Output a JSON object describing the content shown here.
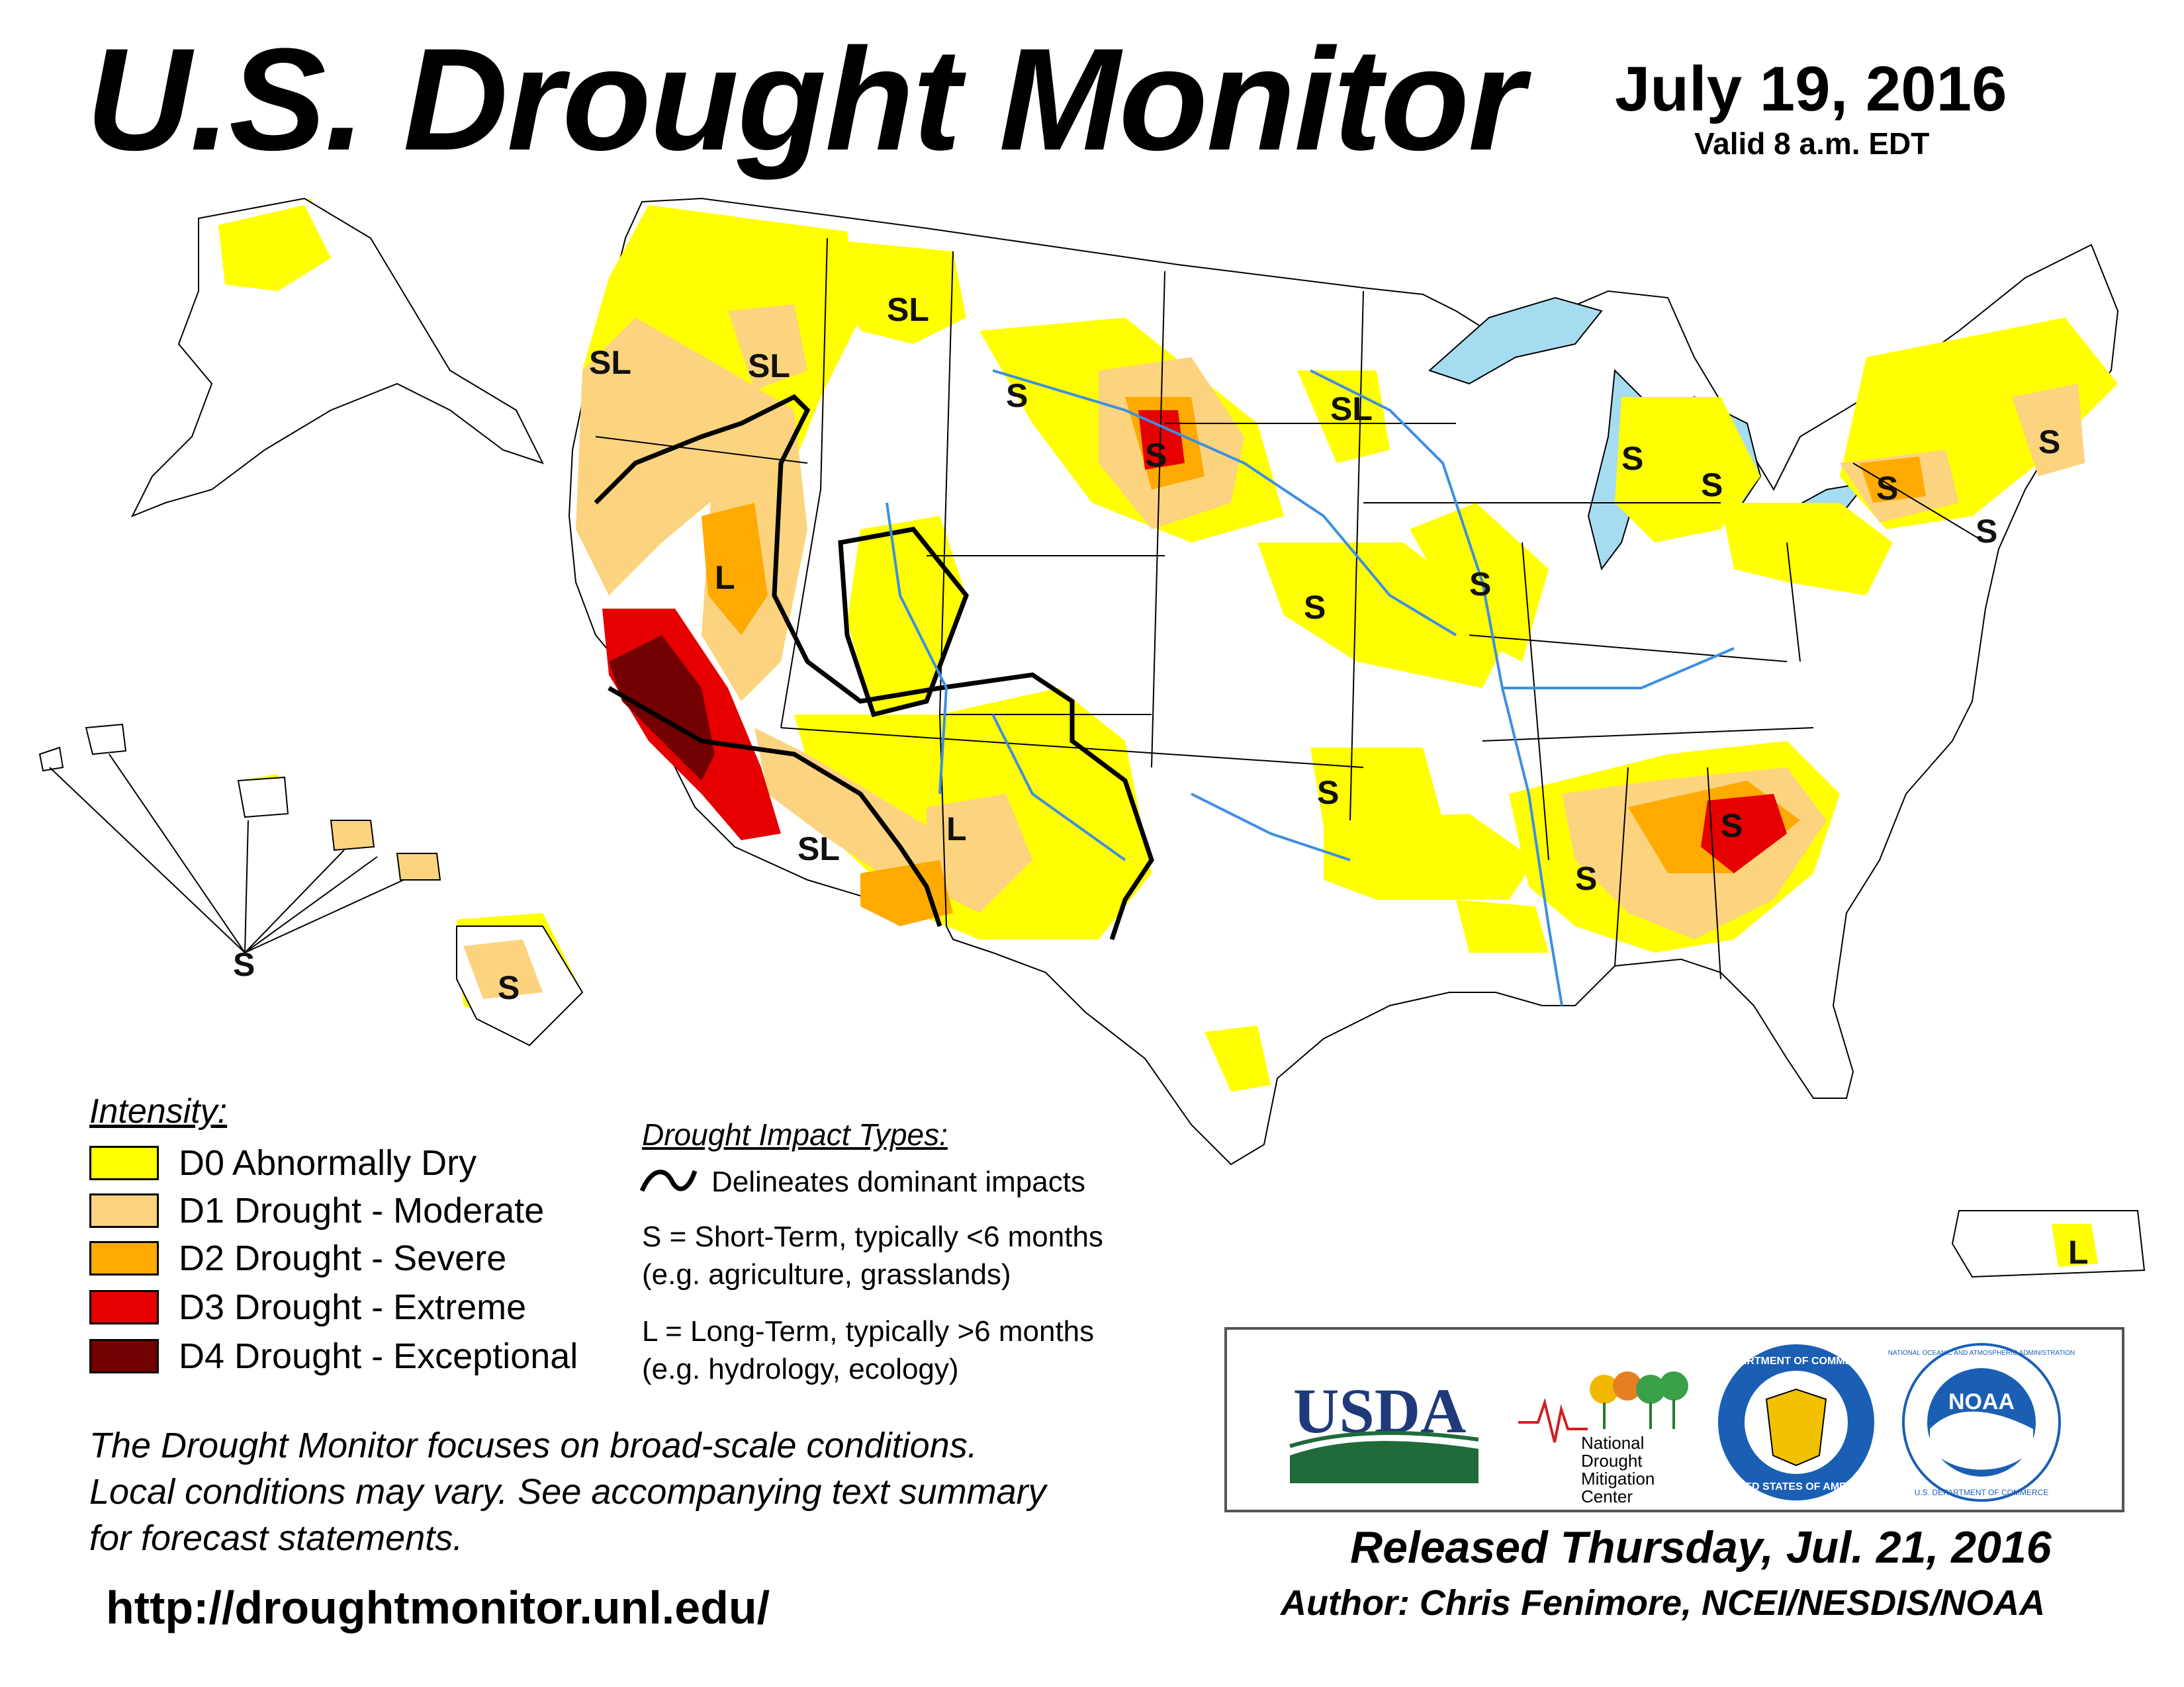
{
  "header": {
    "title": "U.S. Drought Monitor",
    "date": "July 19, 2016",
    "valid": "Valid 8 a.m. EDT"
  },
  "colors": {
    "d0": "#ffff00",
    "d1": "#fcd37f",
    "d2": "#ffaa00",
    "d3": "#e60000",
    "d4": "#730000",
    "water": "#a6dcf0",
    "rivers": "#3d8fe0"
  },
  "legend": {
    "title": "Intensity:",
    "items": [
      {
        "label": "D0 Abnormally Dry",
        "color": "#ffff00"
      },
      {
        "label": "D1 Drought - Moderate",
        "color": "#fcd37f"
      },
      {
        "label": "D2 Drought - Severe",
        "color": "#ffaa00"
      },
      {
        "label": "D3 Drought - Extreme",
        "color": "#e60000"
      },
      {
        "label": "D4 Drought - Exceptional",
        "color": "#730000"
      }
    ]
  },
  "impacts": {
    "title": "Drought Impact Types:",
    "delineates": "Delineates dominant impacts",
    "short_term": "S = Short-Term, typically <6 months",
    "short_term_eg": "(e.g. agriculture, grasslands)",
    "long_term": "L = Long-Term, typically >6 months",
    "long_term_eg": "(e.g. hydrology, ecology)"
  },
  "map_labels": {
    "sl": "SL",
    "s": "S",
    "l": "L"
  },
  "note": {
    "line1": "The Drought Monitor focuses on broad-scale conditions.",
    "line2": "Local conditions may vary. See accompanying text summary",
    "line3": "for forecast statements."
  },
  "url": "http://droughtmonitor.unl.edu/",
  "logos": {
    "usda": "USDA",
    "ndmc_line1": "National",
    "ndmc_line2": "Drought",
    "ndmc_line3": "Mitigation",
    "ndmc_line4": "Center",
    "commerce_top": "DEPARTMENT OF COMMERCE",
    "commerce_bottom": "UNITED STATES OF AMERICA",
    "noaa": "NOAA",
    "noaa_ring": "NATIONAL OCEANIC AND ATMOSPHERIC ADMINISTRATION",
    "noaa_bottom": "U.S. DEPARTMENT OF COMMERCE"
  },
  "footer": {
    "released": "Released Thursday, Jul. 21, 2016",
    "author": "Author: Chris Fenimore, NCEI/NESDIS/NOAA"
  }
}
